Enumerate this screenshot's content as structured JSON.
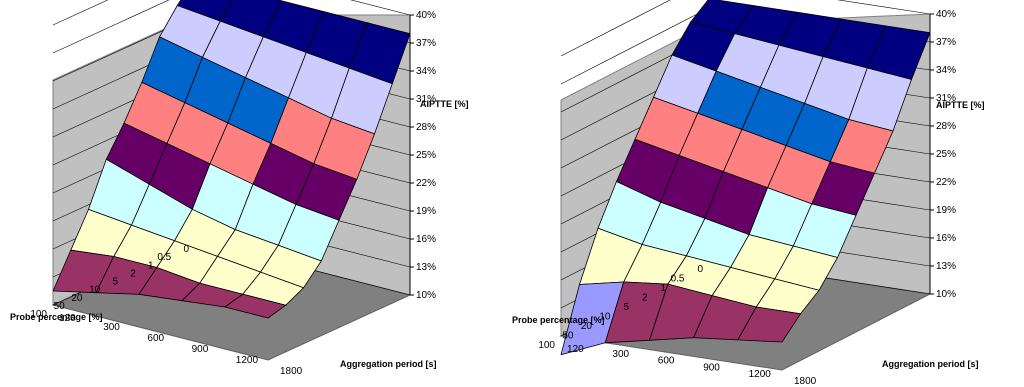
{
  "chart_data": [
    {
      "type": "surface3d",
      "title": "",
      "zlabel": "AIPTTE [%]",
      "xlabel": "Aggregation period [s]",
      "ylabel": "Probe percentage [%]",
      "z_ticks": [
        "10%",
        "13%",
        "16%",
        "19%",
        "22%",
        "25%",
        "28%",
        "31%",
        "34%",
        "37%",
        "40%"
      ],
      "zlim": [
        10,
        40
      ],
      "x_ticks": [
        "120",
        "300",
        "600",
        "900",
        "1200",
        "1800"
      ],
      "y_ticks": [
        "0",
        "0.5",
        "1",
        "2",
        "5",
        "10",
        "20",
        "50",
        "100"
      ],
      "grid": true,
      "band_colors": [
        "#993366",
        "#FFFFCC",
        "#CCFFFF",
        "#660066",
        "#FF8080",
        "#0066CC",
        "#CCCCFF",
        "#000080"
      ],
      "values": [
        [
          38,
          38,
          38,
          38,
          38,
          38
        ],
        [
          36,
          35.5,
          35,
          34.5,
          34,
          33.5
        ],
        [
          33.5,
          32.5,
          31.5,
          30.5,
          29.5,
          29
        ],
        [
          29.5,
          28.5,
          27.5,
          26.5,
          25.5,
          25
        ],
        [
          26,
          25,
          24,
          23,
          22,
          21.5
        ],
        [
          23,
          21.5,
          20,
          19,
          18.5,
          18
        ],
        [
          18.5,
          18,
          17.5,
          17,
          16.5,
          16
        ],
        [
          15,
          15.5,
          15.5,
          15,
          15,
          15
        ],
        [
          11.5,
          12.5,
          13.5,
          14,
          14.5,
          14.5
        ]
      ]
    },
    {
      "type": "surface3d",
      "title": "",
      "zlabel": "AIPTTE [%]",
      "xlabel": "Aggregation period [s]",
      "ylabel": "Probe percentage [%]",
      "z_ticks": [
        "10%",
        "13%",
        "16%",
        "19%",
        "22%",
        "25%",
        "28%",
        "31%",
        "34%",
        "37%",
        "40%"
      ],
      "zlim": [
        10,
        40
      ],
      "x_ticks": [
        "120",
        "300",
        "600",
        "900",
        "1200",
        "1800"
      ],
      "y_ticks": [
        "0",
        "0.5",
        "1",
        "2",
        "5",
        "10",
        "20",
        "50",
        "100"
      ],
      "grid": true,
      "band_colors": [
        "#9999FF",
        "#993366",
        "#FFFFCC",
        "#CCFFFF",
        "#660066",
        "#FF8080",
        "#0066CC",
        "#CCCCFF",
        "#000080"
      ],
      "values": [
        [
          38,
          38,
          38,
          38,
          38,
          38
        ],
        [
          36.5,
          36,
          35.5,
          35,
          34.5,
          34
        ],
        [
          34,
          33,
          32,
          31,
          30,
          29.5
        ],
        [
          30.5,
          29.5,
          28.5,
          27.5,
          26.5,
          26
        ],
        [
          27,
          26,
          25,
          24,
          23,
          22.5
        ],
        [
          23.5,
          22,
          21,
          20,
          19.5,
          19
        ],
        [
          19.5,
          18.5,
          18,
          17.5,
          17,
          16.5
        ],
        [
          14.5,
          15.5,
          16,
          15.5,
          15,
          15
        ],
        [
          8,
          10,
          11,
          12,
          12.5,
          13
        ]
      ]
    }
  ]
}
